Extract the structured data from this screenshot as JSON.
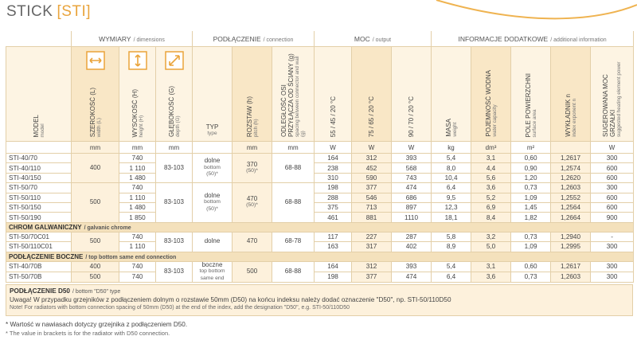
{
  "title": {
    "main": "STICK",
    "code": "[STI]"
  },
  "groups": [
    {
      "pl": "WYMIARY",
      "en": "/ dimensions"
    },
    {
      "pl": "PODŁĄCZENIE",
      "en": "/ connection"
    },
    {
      "pl": "MOC",
      "en": "/ output"
    },
    {
      "pl": "INFORMACJE DODATKOWE",
      "en": "/ additional information"
    }
  ],
  "columns": {
    "model": {
      "pl": "MODEL",
      "en": "model"
    },
    "width": {
      "pl": "SZEROKOŚĆ (L)",
      "en": "width (L)",
      "unit": "mm"
    },
    "height": {
      "pl": "WYSOKOŚĆ (H)",
      "en": "height (H)",
      "unit": "mm"
    },
    "depth": {
      "pl": "GŁĘBOKOŚĆ (G)",
      "en": "depth (G)",
      "unit": "mm"
    },
    "type": {
      "pl": "TYP",
      "en": "type"
    },
    "pitch": {
      "pl": "ROZSTAW (h)",
      "en": "pitch (h)",
      "unit": "mm"
    },
    "spacing": {
      "pl": "ODLEGŁOŚĆ OSI PRZYŁĄCZA OD ŚCIANY (g)",
      "en": "spacing between connector and wall (g)",
      "unit": "mm"
    },
    "output": [
      {
        "pl": "55 / 45 / 20 °C",
        "unit": "W"
      },
      {
        "pl": "75 / 65 / 20 °C",
        "unit": "W"
      },
      {
        "pl": "90 / 70 / 20 °C",
        "unit": "W"
      }
    ],
    "mass": {
      "pl": "MASA",
      "en": "weight",
      "unit": "kg"
    },
    "water": {
      "pl": "POJEMNOŚĆ WODNA",
      "en": "water capacity",
      "unit": "dm³"
    },
    "surface": {
      "pl": "POLE POWIERZCHNI",
      "en": "surface area",
      "unit": "m²"
    },
    "n": {
      "pl": "WYKŁADNIK n",
      "en": "index exponent n"
    },
    "power": {
      "pl": "SUGEROWANA MOC GRZAŁKI",
      "en": "suggested heating element power",
      "unit": "W"
    }
  },
  "sections": [
    {
      "blocks": [
        {
          "width": "400",
          "depth": "83-103",
          "type": {
            "pl": "dolne",
            "en": "bottom",
            "note": "(50)*"
          },
          "pitch": {
            "value": "370",
            "note": "(50)*"
          },
          "spacing": "68-88",
          "rows": [
            {
              "model": "STI-40/70",
              "height": "740",
              "output": [
                "164",
                "312",
                "393"
              ],
              "mass": "5,4",
              "water": "3,1",
              "surface": "0,60",
              "n": "1,2617",
              "power": "300"
            },
            {
              "model": "STI-40/110",
              "height": "1 110",
              "output": [
                "238",
                "452",
                "568"
              ],
              "mass": "8,0",
              "water": "4,4",
              "surface": "0,90",
              "n": "1,2574",
              "power": "600"
            },
            {
              "model": "STI-40/150",
              "height": "1 480",
              "output": [
                "310",
                "590",
                "743"
              ],
              "mass": "10,4",
              "water": "5,6",
              "surface": "1,20",
              "n": "1,2620",
              "power": "600"
            }
          ]
        },
        {
          "width": "500",
          "depth": "83-103",
          "type": {
            "pl": "dolne",
            "en": "bottom",
            "note": "(50)*"
          },
          "pitch": {
            "value": "470",
            "note": "(50)*"
          },
          "spacing": "68-88",
          "rows": [
            {
              "model": "STI-50/70",
              "height": "740",
              "output": [
                "198",
                "377",
                "474"
              ],
              "mass": "6,4",
              "water": "3,6",
              "surface": "0,73",
              "n": "1,2603",
              "power": "300"
            },
            {
              "model": "STI-50/110",
              "height": "1 110",
              "output": [
                "288",
                "546",
                "686"
              ],
              "mass": "9,5",
              "water": "5,2",
              "surface": "1,09",
              "n": "1,2552",
              "power": "600"
            },
            {
              "model": "STI-50/150",
              "height": "1 480",
              "output": [
                "375",
                "713",
                "897"
              ],
              "mass": "12,3",
              "water": "6,9",
              "surface": "1,45",
              "n": "1,2564",
              "power": "600"
            },
            {
              "model": "STI-50/190",
              "height": "1 850",
              "output": [
                "461",
                "881",
                "1110"
              ],
              "mass": "18,1",
              "water": "8,4",
              "surface": "1,82",
              "n": "1,2664",
              "power": "900"
            }
          ]
        }
      ]
    },
    {
      "title": {
        "pl": "CHROM GALWANICZNY",
        "en": "/ galvanic chrome"
      },
      "blocks": [
        {
          "width": "500",
          "depth": "83-103",
          "type": {
            "pl": "dolne"
          },
          "pitch": {
            "value": "470"
          },
          "spacing": "68-78",
          "rows": [
            {
              "model": "STI-50/70C01",
              "height": "740",
              "output": [
                "117",
                "227",
                "287"
              ],
              "mass": "5,8",
              "water": "3,2",
              "surface": "0,73",
              "n": "1,2940",
              "power": "-"
            },
            {
              "model": "STI-50/110C01",
              "height": "1 110",
              "output": [
                "163",
                "317",
                "402"
              ],
              "mass": "8,9",
              "water": "5,0",
              "surface": "1,09",
              "n": "1,2995",
              "power": "300"
            }
          ]
        }
      ]
    },
    {
      "title": {
        "pl": "PODŁĄCZENIE BOCZNE",
        "en": "/ top bottom same end connection"
      },
      "blocks": [
        {
          "depth": "83-103",
          "type": {
            "pl": "boczne",
            "en": "top bottom same end"
          },
          "pitch": {
            "value": "500"
          },
          "spacing": "68-88",
          "rows": [
            {
              "model": "STI-40/70B",
              "width": "400",
              "height": "740",
              "output": [
                "164",
                "312",
                "393"
              ],
              "mass": "5,4",
              "water": "3,1",
              "surface": "0,60",
              "n": "1,2617",
              "power": "300"
            },
            {
              "model": "STI-50/70B",
              "width": "500",
              "height": "740",
              "output": [
                "198",
                "377",
                "474"
              ],
              "mass": "6,4",
              "water": "3,6",
              "surface": "0,73",
              "n": "1,2603",
              "power": "300"
            }
          ]
        }
      ]
    }
  ],
  "note": {
    "title_pl": "PODŁĄCZENIE D50",
    "title_en": "/ bottom \"D50\" type",
    "text_pl": "Uwaga! W przypadku grzejników z podłączeniem dolnym o rozstawie 50mm (D50) na końcu indeksu należy dodać oznaczenie \"D50\", np. STI-50/110D50",
    "text_en": "Note! For radiators with bottom connection spacing of 50mm (D50) at the end of the index, add the designation \"D50\", e.g. STI-50/110D50"
  },
  "footnotes": [
    "* Wartość w nawiasach dotyczy grzejnika z podłączeniem D50.",
    "* The value in brackets is for the radiator with D50 connection."
  ]
}
